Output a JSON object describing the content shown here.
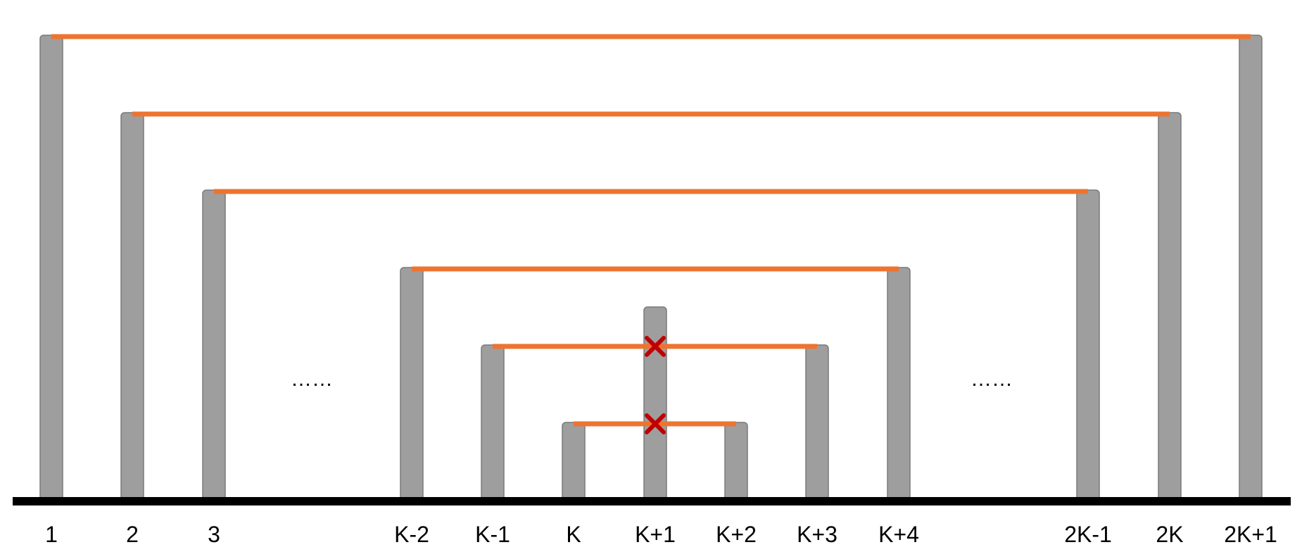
{
  "diagram": {
    "colors": {
      "pillar": "#9E9E9E",
      "pillar_outline": "#7A7A7A",
      "connection": "#ED7430",
      "cross": "#C00000",
      "baseline": "#000000",
      "text": "#000000"
    },
    "pillars": [
      {
        "label": "1",
        "height_rank": 6
      },
      {
        "label": "2",
        "height_rank": 5
      },
      {
        "label": "3",
        "height_rank": 4
      },
      {
        "label": "K-2",
        "height_rank": 3
      },
      {
        "label": "K-1",
        "height_rank": 2
      },
      {
        "label": "K",
        "height_rank": 1
      },
      {
        "label": "K+1",
        "height_rank": 2.5
      },
      {
        "label": "K+2",
        "height_rank": 1
      },
      {
        "label": "K+3",
        "height_rank": 2
      },
      {
        "label": "K+4",
        "height_rank": 3
      },
      {
        "label": "2K-1",
        "height_rank": 4
      },
      {
        "label": "2K",
        "height_rank": 5
      },
      {
        "label": "2K+1",
        "height_rank": 6
      }
    ],
    "connections": [
      {
        "from": "1",
        "to": "2K+1",
        "blocked_by": null
      },
      {
        "from": "2",
        "to": "2K",
        "blocked_by": null
      },
      {
        "from": "3",
        "to": "2K-1",
        "blocked_by": null
      },
      {
        "from": "K-2",
        "to": "K+4",
        "blocked_by": null
      },
      {
        "from": "K-1",
        "to": "K+3",
        "blocked_by": "K+1"
      },
      {
        "from": "K",
        "to": "K+2",
        "blocked_by": "K+1"
      }
    ],
    "ellipses": [
      {
        "text": "……",
        "after": "3"
      },
      {
        "text": "……",
        "after": "K+4"
      }
    ]
  }
}
